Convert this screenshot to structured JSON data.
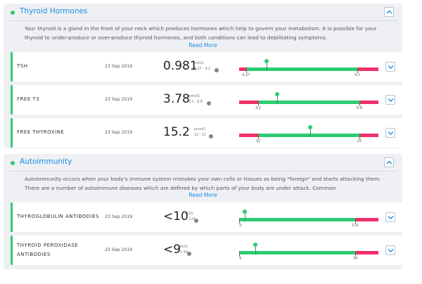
{
  "colors": {
    "accent": "#1c8ee6",
    "normal": "#2ecc71",
    "abnormal": "#f0306a"
  },
  "sections": [
    {
      "title": "Thyroid Hormones",
      "description": "Your thyroid is a gland in the front of your neck which produces hormones which help to govern your metabolism. It is possible for your thyroid to under-produce or over-produce thyroid hormones, and both conditions can lead to debilitating symptoms.",
      "read_more": "Read More",
      "tests": [
        {
          "name": "TSH",
          "date": "23 Sep 2019",
          "value": "0.981",
          "unit": "mIU/L",
          "range": "0.27 - 4.2",
          "bar_min": "0.27",
          "bar_max": "4.2"
        },
        {
          "name": "FREE T3",
          "date": "23 Sep 2019",
          "value": "3.78",
          "unit": "pmol/L",
          "range": "3.1 - 6.8",
          "bar_min": "3.1",
          "bar_max": "6.8"
        },
        {
          "name": "FREE THYROXINE",
          "date": "23 Sep 2019",
          "value": "15.2",
          "unit": "pmol/L",
          "range": "12 - 22",
          "bar_min": "12",
          "bar_max": "22"
        }
      ]
    },
    {
      "title": "Autoimmunity",
      "description": "Autoimmunity occurs when your body's immune system mistakes your own cells or tissues as being \"foreign\" and starts attacking them. There are a number of autoimmune diseases which are defined by which parts of your body are under attack. Common",
      "read_more": "Read More",
      "tests": [
        {
          "name": "THYROGLOBULIN ANTIBODIES",
          "date": "23 Sep 2019",
          "value": "<10",
          "unit": "kIU/L",
          "range": "< 115",
          "bar_min": "0",
          "bar_max": "115"
        },
        {
          "name": "THYROID PEROXIDASE ANTIBODIES",
          "date": "23 Sep 2019",
          "value": "<9",
          "unit": "kIU/L",
          "range": "< 34",
          "bar_min": "0",
          "bar_max": "34"
        }
      ]
    }
  ]
}
